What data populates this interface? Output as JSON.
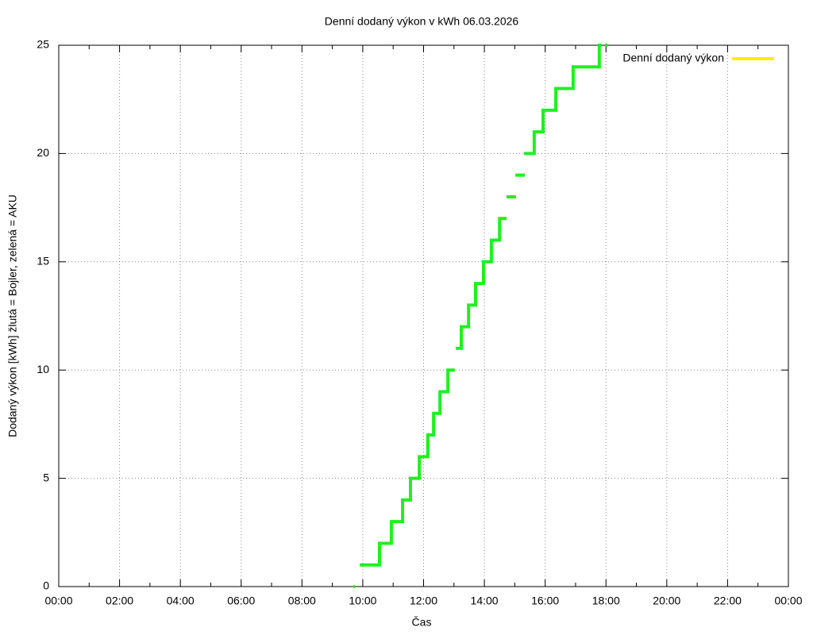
{
  "chart_data": {
    "type": "line",
    "steps": true,
    "title": "Denní dodaný výkon v kWh 06.03.2026",
    "x_label": "Čas",
    "y_label": "Dodaný výkon [kWh]  žlutá = Bojler, zelená = AKU",
    "xlim": [
      0,
      24
    ],
    "xticks": [
      {
        "value": 0,
        "label": "00:00"
      },
      {
        "value": 2,
        "label": "02:00"
      },
      {
        "value": 4,
        "label": "04:00"
      },
      {
        "value": 6,
        "label": "06:00"
      },
      {
        "value": 8,
        "label": "08:00"
      },
      {
        "value": 10,
        "label": "10:00"
      },
      {
        "value": 12,
        "label": "12:00"
      },
      {
        "value": 14,
        "label": "14:00"
      },
      {
        "value": 16,
        "label": "16:00"
      },
      {
        "value": 18,
        "label": "18:00"
      },
      {
        "value": 20,
        "label": "20:00"
      },
      {
        "value": 22,
        "label": "22:00"
      },
      {
        "value": 24,
        "label": "00:00"
      }
    ],
    "xminorticks": [
      1,
      3,
      5,
      7,
      9,
      11,
      13,
      15,
      17,
      19,
      21,
      23
    ],
    "ylim": [
      0,
      25
    ],
    "yticks": [
      0,
      5,
      10,
      15,
      20,
      25
    ],
    "grid": true,
    "legend": "top-right",
    "series": [
      {
        "name": "Denní dodaný výkon",
        "color": "#22ee22",
        "legend_color": "#ffee00",
        "x": [
          9.7,
          9.74,
          null,
          9.9,
          10.55,
          10.94,
          11.31,
          11.57,
          11.86,
          12.14,
          12.33,
          12.54,
          12.8,
          13.03,
          null,
          13.06,
          13.24,
          13.48,
          13.71,
          13.97,
          14.23,
          14.5,
          14.73,
          null,
          14.73,
          15.04,
          null,
          15.02,
          15.33,
          null,
          15.3,
          15.64,
          15.93,
          16.35,
          16.92,
          17.78,
          17.84,
          null,
          17.97,
          18.05
        ],
        "values": [
          0,
          0,
          null,
          1,
          2,
          3,
          4,
          5,
          6,
          7,
          8,
          9,
          10,
          10,
          null,
          11,
          12,
          13,
          14,
          15,
          16,
          17,
          17,
          null,
          18,
          18,
          null,
          19,
          19,
          null,
          20,
          21,
          22,
          23,
          24,
          25,
          25,
          null,
          25,
          25
        ]
      }
    ]
  }
}
